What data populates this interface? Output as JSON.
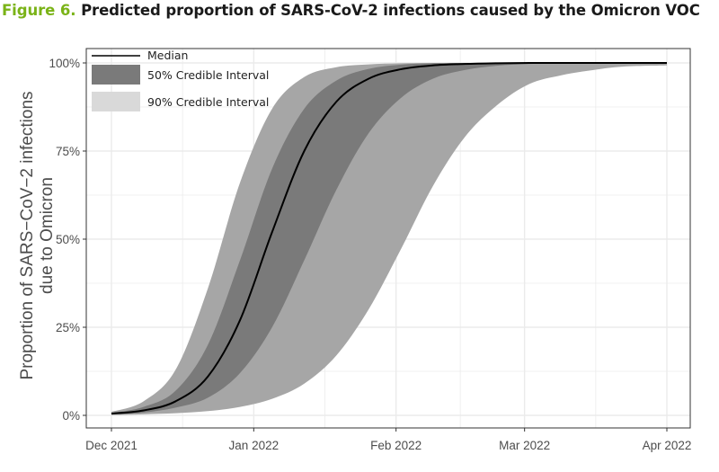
{
  "figure_title": {
    "number": "Figure 6.",
    "text": "Predicted proportion of SARS-CoV-2 infections caused by the Omicron VOC"
  },
  "chart_data": {
    "type": "area",
    "ylabel_line1": "Proportion of SARS−CoV−2 infections",
    "ylabel_line2": "due to Omicron",
    "xlabel": "",
    "x_ticks": [
      "Dec 2021",
      "Jan 2022",
      "Feb 2022",
      "Mar 2022",
      "Apr 2022"
    ],
    "x_tick_dates": [
      "2021-12-01",
      "2022-01-01",
      "2022-02-01",
      "2022-03-01",
      "2022-04-01"
    ],
    "xlim": [
      "2021-12-01",
      "2022-04-01"
    ],
    "y_ticks": [
      "0%",
      "25%",
      "50%",
      "75%",
      "100%"
    ],
    "ylim": [
      0,
      1
    ],
    "grid": true,
    "legend_position": "top-left",
    "legend": [
      {
        "label": "Median",
        "kind": "line",
        "color": "#000000"
      },
      {
        "label": "50% Credible Interval",
        "kind": "fill",
        "color": "#7a7a7a"
      },
      {
        "label": "90% Credible Interval",
        "kind": "fill",
        "color": "#d9d9d9"
      }
    ],
    "colors": {
      "ci90": "#a6a6a6",
      "ci50": "#7a7a7a",
      "median": "#000000",
      "grid": "#ebebeb",
      "axis": "#333333"
    },
    "x": [
      "2021-12-01",
      "2021-12-08",
      "2021-12-15",
      "2021-12-22",
      "2021-12-29",
      "2022-01-05",
      "2022-01-12",
      "2022-01-19",
      "2022-01-26",
      "2022-02-02",
      "2022-02-09",
      "2022-02-16",
      "2022-02-23",
      "2022-03-02",
      "2022-03-09",
      "2022-03-16",
      "2022-03-23",
      "2022-04-01"
    ],
    "series": [
      {
        "name": "Median",
        "values": [
          0.005,
          0.014,
          0.04,
          0.11,
          0.27,
          0.52,
          0.75,
          0.89,
          0.955,
          0.982,
          0.993,
          0.997,
          0.999,
          1.0,
          1.0,
          1.0,
          1.0,
          1.0
        ]
      },
      {
        "name": "90% Credible Interval lower",
        "values": [
          0.001,
          0.003,
          0.006,
          0.012,
          0.024,
          0.047,
          0.09,
          0.17,
          0.3,
          0.47,
          0.65,
          0.79,
          0.88,
          0.94,
          0.965,
          0.98,
          0.99,
          0.993
        ]
      },
      {
        "name": "90% Credible Interval upper",
        "values": [
          0.01,
          0.04,
          0.13,
          0.36,
          0.66,
          0.87,
          0.96,
          0.988,
          0.996,
          0.999,
          1.0,
          1.0,
          1.0,
          1.0,
          1.0,
          1.0,
          1.0,
          1.0
        ]
      },
      {
        "name": "50% Credible Interval lower",
        "values": [
          0.002,
          0.008,
          0.022,
          0.05,
          0.12,
          0.25,
          0.44,
          0.64,
          0.8,
          0.9,
          0.955,
          0.98,
          0.992,
          0.997,
          0.999,
          1.0,
          1.0,
          1.0
        ]
      },
      {
        "name": "50% Credible Interval upper",
        "values": [
          0.007,
          0.024,
          0.07,
          0.2,
          0.44,
          0.7,
          0.87,
          0.95,
          0.983,
          0.995,
          0.999,
          1.0,
          1.0,
          1.0,
          1.0,
          1.0,
          1.0,
          1.0
        ]
      }
    ]
  }
}
